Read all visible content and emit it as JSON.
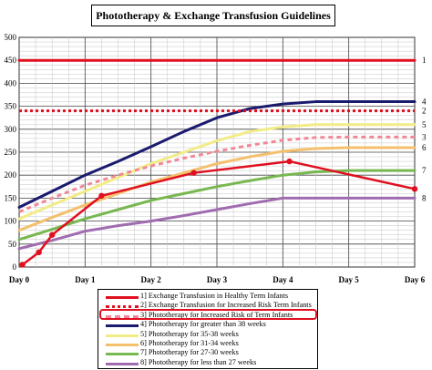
{
  "chart_data": {
    "type": "line",
    "title": "Phototherapy & Exchange Transfusion Guidelines",
    "xlabel": "",
    "ylabel": "",
    "x_labels": [
      "Day 0",
      "Day 1",
      "Day 2",
      "Day 3",
      "Day 4",
      "Day 5",
      "Day 6"
    ],
    "xlim": [
      0,
      6
    ],
    "ylim": [
      0,
      500
    ],
    "y_ticks": [
      0,
      50,
      100,
      150,
      200,
      250,
      300,
      350,
      400,
      450,
      500
    ],
    "grid": true,
    "legend_placement": "bottom",
    "series": [
      {
        "number": "1",
        "name": "Exchange Transfusion in Healthy Term Infants",
        "color": "#e01020",
        "style": "solid",
        "width": 3,
        "x": [
          0,
          6
        ],
        "y": [
          450,
          450
        ]
      },
      {
        "number": "2",
        "name": "Exchange Transfusion for Increased Risk Term Infants",
        "color": "#e01020",
        "style": "dotted",
        "width": 3,
        "x": [
          0,
          6
        ],
        "y": [
          340,
          340
        ]
      },
      {
        "number": "3",
        "name": "Phototherapy for Increased Risk of Term Infants",
        "color": "#f08896",
        "style": "dashed",
        "width": 3,
        "x": [
          0,
          0.5,
          1,
          1.5,
          2,
          2.5,
          3,
          3.5,
          4,
          4.5,
          5,
          5.5,
          6
        ],
        "y": [
          120,
          150,
          178,
          200,
          220,
          237,
          252,
          265,
          276,
          282,
          283,
          283,
          283
        ]
      },
      {
        "number": "4",
        "name": "Phototherapy for greater than 38 weeks",
        "color": "#1a1a6e",
        "style": "solid",
        "width": 3,
        "x": [
          0,
          0.5,
          1,
          1.5,
          2,
          2.5,
          3,
          3.5,
          4,
          4.5,
          5,
          5.5,
          6
        ],
        "y": [
          130,
          165,
          200,
          230,
          262,
          295,
          325,
          345,
          355,
          360,
          360,
          360,
          360
        ]
      },
      {
        "number": "5",
        "name": "Phototherapy for 35-38 weeks",
        "color": "#f2ec86",
        "style": "solid",
        "width": 3,
        "x": [
          0,
          0.5,
          1,
          1.5,
          2,
          2.5,
          3,
          3.5,
          4,
          4.5,
          5,
          5.5,
          6
        ],
        "y": [
          105,
          135,
          165,
          195,
          225,
          250,
          275,
          295,
          305,
          310,
          310,
          310,
          310
        ]
      },
      {
        "number": "6",
        "name": "Phototherapy for 31-34 weeks",
        "color": "#f4c06e",
        "style": "solid",
        "width": 3,
        "x": [
          0,
          0.5,
          1,
          1.5,
          2,
          2.5,
          3,
          3.5,
          4,
          4.5,
          5,
          5.5,
          6
        ],
        "y": [
          80,
          108,
          135,
          160,
          185,
          205,
          225,
          240,
          252,
          258,
          260,
          260,
          260
        ]
      },
      {
        "number": "7",
        "name": "Phototherapy for 27-30 weeks",
        "color": "#78b850",
        "style": "solid",
        "width": 3,
        "x": [
          0,
          0.5,
          1,
          1.5,
          2,
          2.5,
          3,
          3.5,
          4,
          4.5,
          5,
          5.5,
          6
        ],
        "y": [
          60,
          82,
          105,
          125,
          145,
          160,
          175,
          188,
          200,
          207,
          210,
          210,
          210
        ]
      },
      {
        "number": "8",
        "name": "Phototherapy for less than 27 weeks",
        "color": "#a06cb0",
        "style": "solid",
        "width": 3,
        "x": [
          0,
          0.5,
          1,
          1.5,
          2,
          2.5,
          3,
          3.5,
          4,
          4.5,
          5,
          5.5,
          6
        ],
        "y": [
          40,
          58,
          78,
          90,
          100,
          112,
          125,
          138,
          150,
          150,
          150,
          150,
          150
        ]
      }
    ],
    "patient_series": {
      "color": "#e01020",
      "x": [
        0.05,
        0.3,
        0.5,
        1.25,
        2.65,
        4.1,
        6
      ],
      "y": [
        5,
        32,
        70,
        155,
        205,
        230,
        170
      ]
    }
  }
}
